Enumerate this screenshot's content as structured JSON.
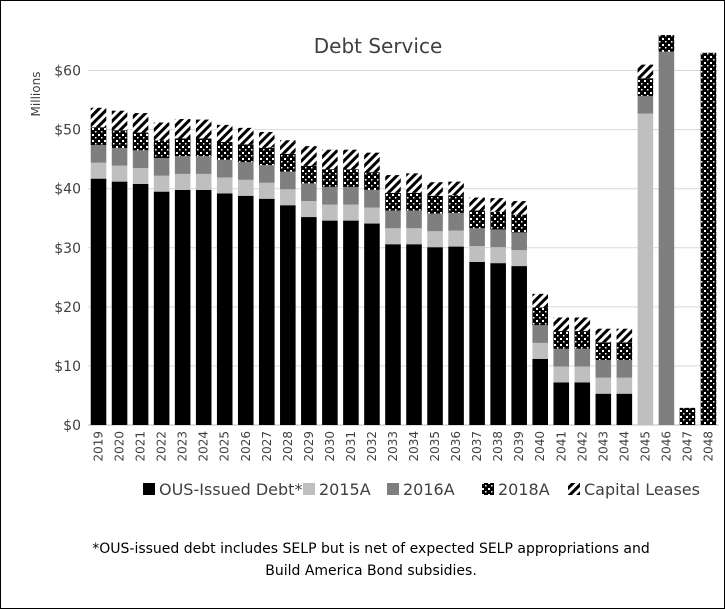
{
  "colors": {
    "OUS-Issued Debt*": "#000000",
    "2015A": "#bfbfbf",
    "2016A": "#7f7f7f",
    "2018A": "#000000",
    "Capital Leases": "#000000",
    "gridline": "#d9d9d9",
    "axis": "#bfbfbf",
    "text": "#404040"
  },
  "footnote": {
    "line1": "*OUS-issued debt includes SELP but is net of expected SELP appropriations and",
    "line2": "Build America Bond subsidies."
  },
  "chart_data": {
    "type": "bar",
    "stacked": true,
    "title": "Debt Service",
    "ylabel": "Millions",
    "xlabel": "",
    "ylim": [
      0,
      65
    ],
    "yticks": [
      0,
      10,
      20,
      30,
      40,
      50,
      60
    ],
    "ytick_labels": [
      "$0",
      "$10",
      "$20",
      "$30",
      "$40",
      "$50",
      "$60"
    ],
    "grid": true,
    "legend_position": "bottom",
    "categories": [
      "2019",
      "2020",
      "2021",
      "2022",
      "2023",
      "2024",
      "2025",
      "2026",
      "2027",
      "2028",
      "2029",
      "2030",
      "2031",
      "2032",
      "2033",
      "2034",
      "2035",
      "2036",
      "2037",
      "2038",
      "2039",
      "2040",
      "2041",
      "2042",
      "2043",
      "2044",
      "2045",
      "2046",
      "2047",
      "2048"
    ],
    "series": [
      {
        "name": "OUS-Issued Debt*",
        "pattern": "solid",
        "values": [
          41.7,
          41.2,
          40.8,
          39.5,
          39.8,
          39.8,
          39.2,
          38.8,
          38.3,
          37.2,
          35.2,
          34.6,
          34.6,
          34.1,
          30.6,
          30.6,
          30.1,
          30.2,
          27.6,
          27.4,
          26.9,
          11.2,
          7.2,
          7.2,
          5.3,
          5.3,
          0,
          0,
          0,
          0
        ]
      },
      {
        "name": "2015A",
        "pattern": "solid-light",
        "values": [
          2.7,
          2.7,
          2.7,
          2.7,
          2.7,
          2.7,
          2.7,
          2.7,
          2.7,
          2.7,
          2.7,
          2.7,
          2.7,
          2.7,
          2.7,
          2.7,
          2.7,
          2.7,
          2.7,
          2.7,
          2.7,
          2.7,
          2.7,
          2.7,
          2.7,
          2.7,
          52.7,
          0,
          0,
          0
        ]
      },
      {
        "name": "2016A",
        "pattern": "solid-mid",
        "values": [
          3.0,
          3.0,
          3.0,
          3.0,
          3.0,
          3.0,
          3.0,
          3.0,
          3.0,
          3.0,
          3.0,
          3.0,
          3.0,
          3.0,
          3.0,
          3.0,
          3.0,
          3.0,
          3.0,
          3.0,
          3.0,
          3.0,
          3.0,
          3.0,
          3.0,
          3.0,
          3.0,
          63.2,
          0,
          0
        ]
      },
      {
        "name": "2018A",
        "pattern": "dots",
        "values": [
          3.0,
          3.0,
          3.0,
          3.0,
          3.0,
          3.0,
          3.0,
          3.0,
          3.0,
          3.0,
          3.0,
          3.0,
          3.0,
          3.0,
          3.0,
          3.0,
          3.0,
          3.0,
          3.0,
          3.0,
          3.0,
          3.0,
          3.0,
          3.0,
          3.0,
          3.0,
          3.0,
          2.8,
          2.9,
          63.0
        ]
      },
      {
        "name": "Capital Leases",
        "pattern": "hatch",
        "values": [
          3.3,
          3.3,
          3.3,
          3.0,
          3.3,
          3.2,
          2.9,
          2.8,
          2.6,
          2.3,
          3.3,
          3.3,
          3.3,
          3.3,
          3.0,
          3.3,
          2.3,
          2.3,
          2.2,
          2.3,
          2.3,
          2.3,
          2.3,
          2.3,
          2.3,
          2.3,
          2.3,
          0,
          0,
          0
        ]
      }
    ]
  }
}
